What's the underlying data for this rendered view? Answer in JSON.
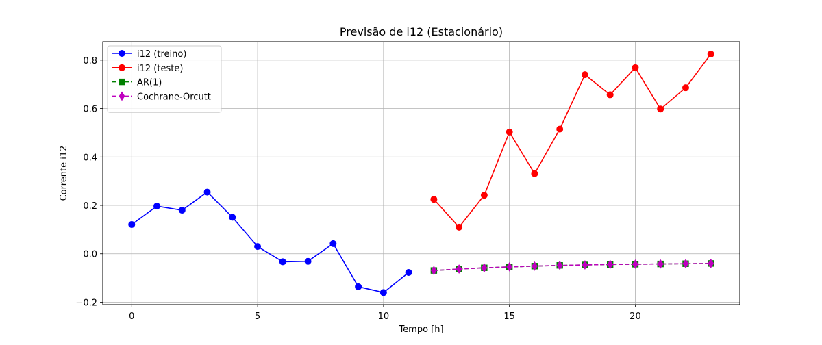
{
  "chart_data": {
    "type": "line",
    "title": "Previsão de i12 (Estacionário)",
    "xlabel": "Tempo [h]",
    "ylabel": "Corrente i12",
    "xlim": [
      -1.15,
      24.15
    ],
    "ylim": [
      -0.21,
      0.876
    ],
    "xticks": [
      0,
      5,
      10,
      15,
      20
    ],
    "xtick_labels": [
      "0",
      "5",
      "10",
      "15",
      "20"
    ],
    "yticks": [
      -0.2,
      0.0,
      0.2,
      0.4,
      0.6,
      0.8
    ],
    "ytick_labels": [
      "−0.2",
      "0.0",
      "0.2",
      "0.4",
      "0.6",
      "0.8"
    ],
    "grid": true,
    "legend_position": "top-left",
    "series": [
      {
        "name": "i12 (treino)",
        "color": "#0000ff",
        "line_style": "solid",
        "marker": "circle",
        "x": [
          0,
          1,
          2,
          3,
          4,
          5,
          6,
          7,
          8,
          9,
          10,
          11
        ],
        "y": [
          0.121,
          0.197,
          0.18,
          0.255,
          0.151,
          0.03,
          -0.033,
          -0.031,
          0.042,
          -0.136,
          -0.16,
          -0.077
        ]
      },
      {
        "name": "i12 (teste)",
        "color": "#ff0000",
        "line_style": "solid",
        "marker": "circle",
        "x": [
          12,
          13,
          14,
          15,
          16,
          17,
          18,
          19,
          20,
          21,
          22,
          23
        ],
        "y": [
          0.225,
          0.11,
          0.242,
          0.503,
          0.331,
          0.515,
          0.74,
          0.657,
          0.769,
          0.598,
          0.686,
          0.825
        ]
      },
      {
        "name": "AR(1)",
        "color": "#008000",
        "line_style": "dashed",
        "marker": "square",
        "x": [
          12,
          13,
          14,
          15,
          16,
          17,
          18,
          19,
          20,
          21,
          22,
          23
        ],
        "y": [
          -0.069,
          -0.063,
          -0.058,
          -0.054,
          -0.051,
          -0.048,
          -0.046,
          -0.044,
          -0.043,
          -0.042,
          -0.041,
          -0.04
        ]
      },
      {
        "name": "Cochrane-Orcutt",
        "color": "#bf00bf",
        "line_style": "dashed",
        "marker": "diamond",
        "x": [
          12,
          13,
          14,
          15,
          16,
          17,
          18,
          19,
          20,
          21,
          22,
          23
        ],
        "y": [
          -0.069,
          -0.063,
          -0.058,
          -0.054,
          -0.051,
          -0.048,
          -0.046,
          -0.044,
          -0.043,
          -0.042,
          -0.041,
          -0.04
        ]
      }
    ]
  }
}
